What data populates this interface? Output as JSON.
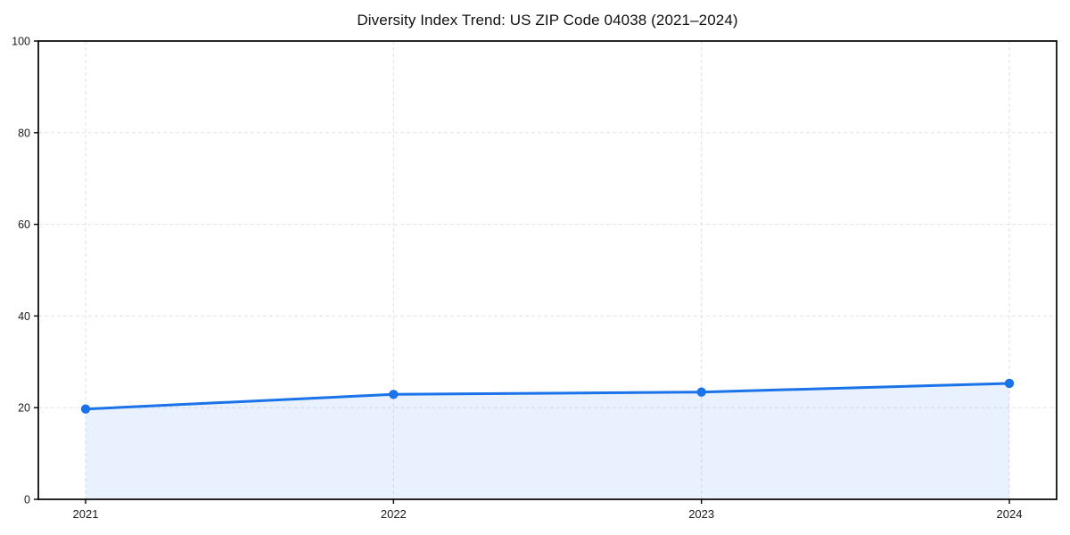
{
  "chart_data": {
    "type": "line",
    "title": "Diversity Index Trend: US ZIP Code 04038 (2021–2024)",
    "x": [
      "2021",
      "2022",
      "2023",
      "2024"
    ],
    "values": [
      19.7,
      22.9,
      23.4,
      25.3
    ],
    "xlabel": "",
    "ylabel": "",
    "ylim": [
      0,
      100
    ],
    "yticks": [
      0,
      20,
      40,
      60,
      80,
      100
    ],
    "grid": true,
    "grid_style": "dashed",
    "legend": false,
    "area_fill": true,
    "marker": "circle",
    "colors": {
      "line": "#1a73e8",
      "fill": "rgba(26,115,232,0.10)",
      "grid": "#e2e2e2",
      "axis": "#000000",
      "tick_text": "#1a1a1a",
      "background": "#ffffff"
    }
  }
}
